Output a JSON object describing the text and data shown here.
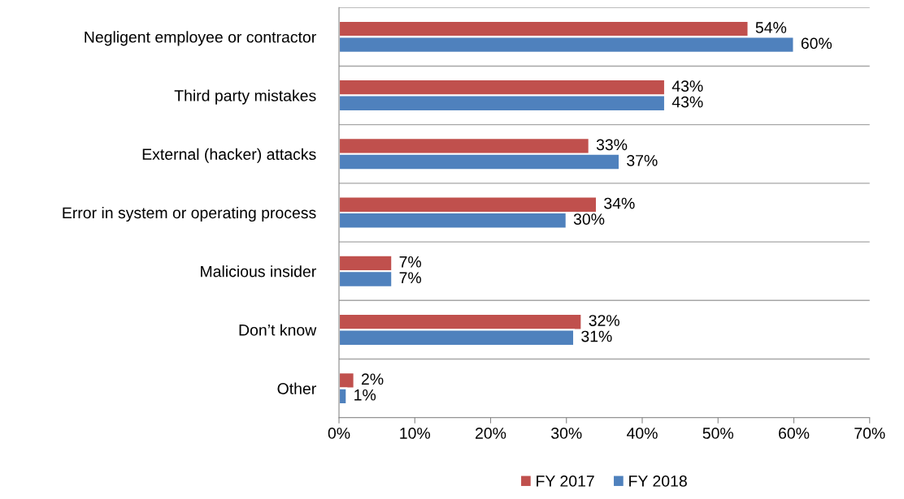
{
  "chart_data": {
    "type": "bar",
    "orientation": "horizontal",
    "categories": [
      "Negligent employee or contractor",
      "Third party mistakes",
      "External (hacker) attacks",
      "Error in system or operating process",
      "Malicious insider",
      "Don’t know",
      "Other"
    ],
    "series": [
      {
        "name": "FY 2017",
        "color": "#c0504d",
        "values": [
          54,
          43,
          33,
          34,
          7,
          32,
          2
        ],
        "value_labels": [
          "54%",
          "43%",
          "33%",
          "34%",
          "7%",
          "32%",
          "2%"
        ]
      },
      {
        "name": "FY 2018",
        "color": "#4f81bd",
        "values": [
          60,
          43,
          37,
          30,
          7,
          31,
          1
        ],
        "value_labels": [
          "60%",
          "43%",
          "37%",
          "30%",
          "7%",
          "31%",
          "1%"
        ]
      }
    ],
    "xlim": [
      0,
      70
    ],
    "xticks": [
      {
        "value": 0,
        "label": "0%"
      },
      {
        "value": 10,
        "label": "10%"
      },
      {
        "value": 20,
        "label": "20%"
      },
      {
        "value": 30,
        "label": "30%"
      },
      {
        "value": 40,
        "label": "40%"
      },
      {
        "value": 50,
        "label": "50%"
      },
      {
        "value": 60,
        "label": "60%"
      },
      {
        "value": 70,
        "label": "70%"
      }
    ],
    "grid": "y",
    "legend": "bottom"
  }
}
